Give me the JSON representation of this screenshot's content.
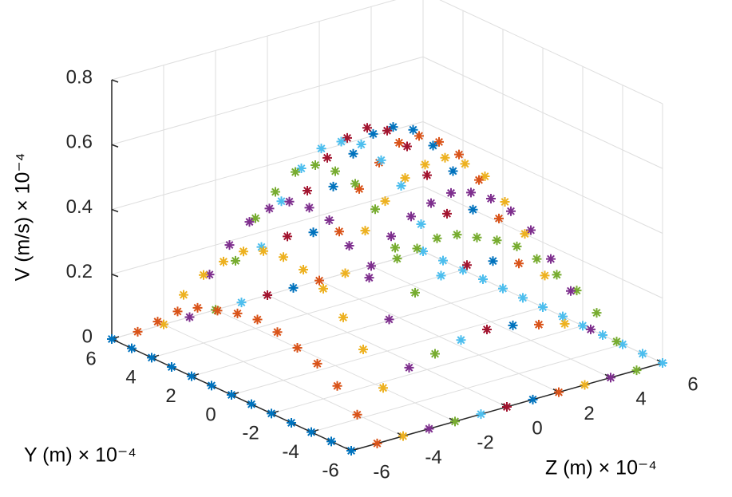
{
  "chart_data": {
    "type": "scatter3d",
    "xlabel": "Z (m) × 10⁻⁴",
    "ylabel": "Y (m) × 10⁻⁴",
    "zlabel": "V (m/s) × 10⁻⁴",
    "y": [
      -6,
      -5,
      -4,
      -3,
      -2,
      -1,
      0,
      1,
      2,
      3,
      4,
      5,
      6
    ],
    "ylim": [
      -6,
      6
    ],
    "yticks": [
      -6,
      -4,
      -2,
      0,
      2,
      4,
      6
    ],
    "zlim": [
      -6,
      6
    ],
    "zticks": [
      -6,
      -4,
      -2,
      0,
      2,
      4,
      6
    ],
    "vlim": [
      0,
      0.8
    ],
    "vticks": [
      0,
      0.2,
      0.4,
      0.6,
      0.8
    ],
    "grid": true,
    "marker": "star",
    "series": [
      {
        "z": -6,
        "color": "#0072BD",
        "values": [
          0,
          0,
          0,
          0,
          0,
          0,
          0,
          0,
          0,
          0,
          0,
          0,
          0
        ]
      },
      {
        "z": -5,
        "color": "#D95319",
        "values": [
          0,
          0.06,
          0.12,
          0.16,
          0.18,
          0.2,
          0.21,
          0.2,
          0.18,
          0.16,
          0.12,
          0.06,
          0
        ]
      },
      {
        "z": -4,
        "color": "#EDB120",
        "values": [
          0,
          0.12,
          0.21,
          0.28,
          0.34,
          0.37,
          0.38,
          0.37,
          0.34,
          0.28,
          0.21,
          0.12,
          0
        ]
      },
      {
        "z": -3,
        "color": "#7E2F8E",
        "values": [
          0,
          0.16,
          0.28,
          0.38,
          0.45,
          0.5,
          0.51,
          0.5,
          0.45,
          0.38,
          0.28,
          0.16,
          0
        ]
      },
      {
        "z": -2,
        "color": "#77AC30",
        "values": [
          0,
          0.18,
          0.34,
          0.45,
          0.54,
          0.59,
          0.6,
          0.59,
          0.54,
          0.45,
          0.34,
          0.18,
          0
        ]
      },
      {
        "z": -1,
        "color": "#4DBEEE",
        "values": [
          0,
          0.2,
          0.37,
          0.5,
          0.59,
          0.64,
          0.66,
          0.64,
          0.59,
          0.5,
          0.37,
          0.2,
          0
        ]
      },
      {
        "z": 0,
        "color": "#A2142F",
        "values": [
          0,
          0.21,
          0.38,
          0.51,
          0.6,
          0.66,
          0.68,
          0.66,
          0.6,
          0.51,
          0.38,
          0.21,
          0
        ]
      },
      {
        "z": 1,
        "color": "#0072BD",
        "values": [
          0,
          0.2,
          0.37,
          0.5,
          0.59,
          0.64,
          0.66,
          0.64,
          0.59,
          0.5,
          0.37,
          0.2,
          0
        ]
      },
      {
        "z": 2,
        "color": "#D95319",
        "values": [
          0,
          0.18,
          0.34,
          0.45,
          0.54,
          0.59,
          0.6,
          0.59,
          0.54,
          0.45,
          0.34,
          0.18,
          0
        ]
      },
      {
        "z": 3,
        "color": "#EDB120",
        "values": [
          0,
          0.16,
          0.28,
          0.38,
          0.45,
          0.5,
          0.51,
          0.5,
          0.45,
          0.38,
          0.28,
          0.16,
          0
        ]
      },
      {
        "z": 4,
        "color": "#7E2F8E",
        "values": [
          0,
          0.12,
          0.21,
          0.28,
          0.34,
          0.37,
          0.38,
          0.37,
          0.34,
          0.28,
          0.21,
          0.12,
          0
        ]
      },
      {
        "z": 5,
        "color": "#77AC30",
        "values": [
          0,
          0.06,
          0.12,
          0.16,
          0.18,
          0.2,
          0.21,
          0.2,
          0.18,
          0.16,
          0.12,
          0.06,
          0
        ]
      },
      {
        "z": 6,
        "color": "#4DBEEE",
        "values": [
          0,
          0,
          0,
          0,
          0,
          0,
          0,
          0,
          0,
          0,
          0,
          0,
          0
        ]
      }
    ]
  }
}
